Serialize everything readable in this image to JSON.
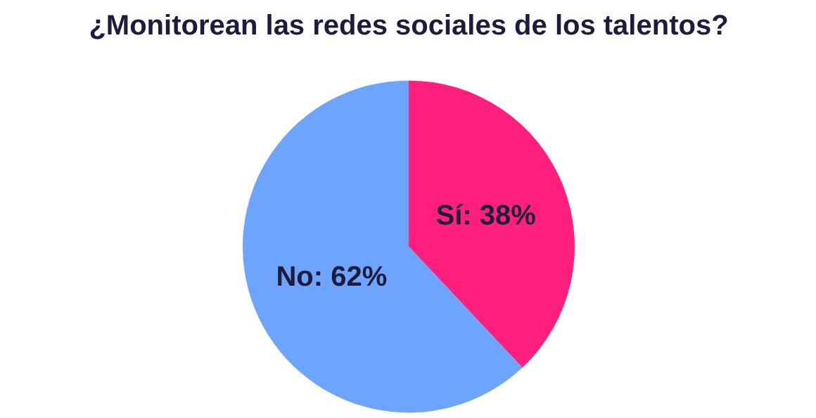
{
  "chart_data": {
    "type": "pie",
    "title": "¿Monitorean las redes sociales de los talentos?",
    "categories": [
      "Sí",
      "No"
    ],
    "values": [
      38,
      62
    ],
    "colors": [
      "#ff1f7d",
      "#6ca4ff"
    ],
    "value_labels": [
      "38%",
      "62%"
    ]
  }
}
